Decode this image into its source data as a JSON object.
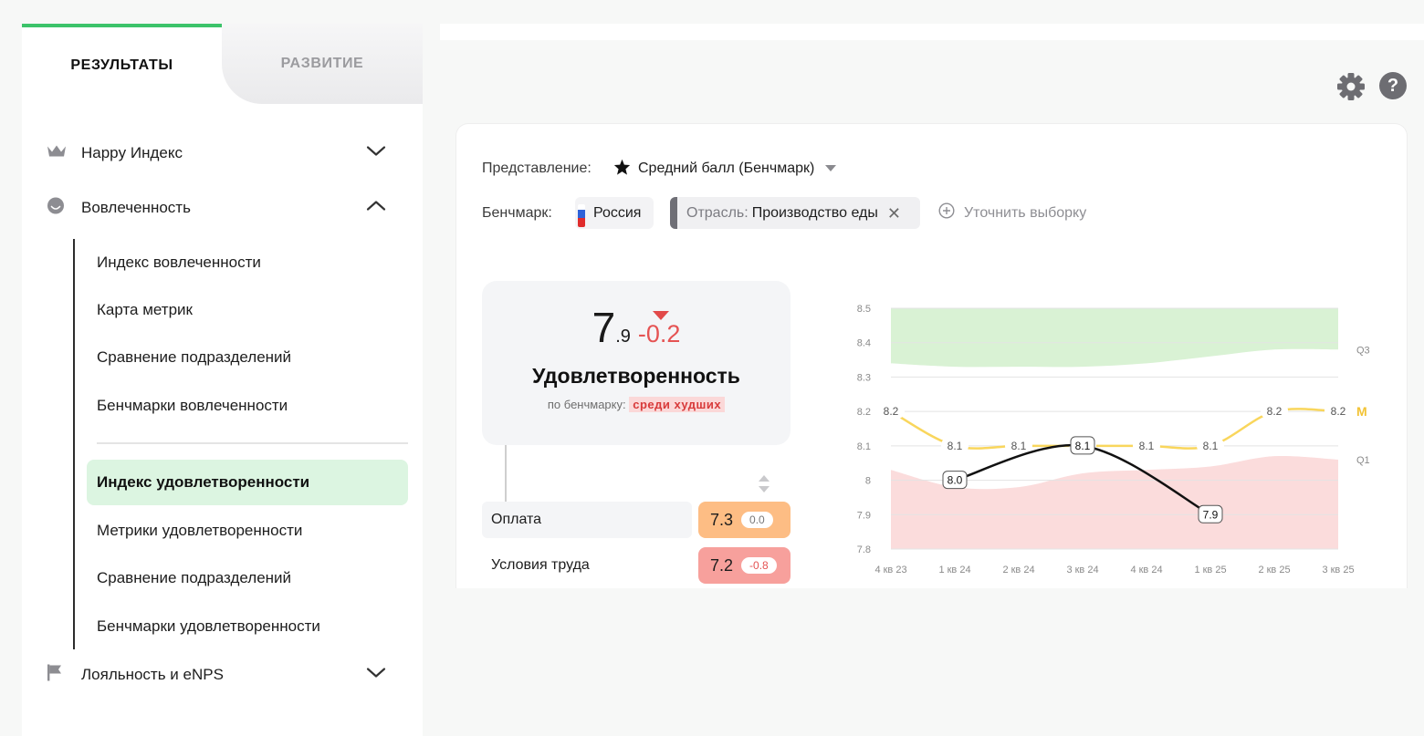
{
  "sidebar": {
    "tabs": {
      "active": "РЕЗУЛЬТАТЫ",
      "inactive": "РАЗВИТИЕ"
    },
    "groups": {
      "happy": "Happy Индекс",
      "engagement": "Вовлеченность",
      "loyalty": "Лояльность и eNPS"
    },
    "engagement_items": [
      "Индекс вовлеченности",
      "Карта метрик",
      "Сравнение подразделений",
      "Бенчмарки вовлеченности"
    ],
    "satisfaction_items": [
      "Индекс удовлетворенности",
      "Метрики удовлетворенности",
      "Сравнение подразделений",
      "Бенчмарки удовлетворенности"
    ]
  },
  "filters": {
    "view_label": "Представление:",
    "view_value": "Средний балл (Бенчмарк)",
    "benchmark_label": "Бенчмарк:",
    "country": "Россия",
    "industry_key": "Отрасль:",
    "industry_value": "Производство еды",
    "refine": "Уточнить выборку"
  },
  "score": {
    "int": "7",
    "dec": ".9",
    "delta": "-0.2",
    "title": "Удовлетворенность",
    "sub_prefix": "по бенчмарку:",
    "sub_tag": "среди худших"
  },
  "metrics": [
    {
      "name": "Оплата",
      "value": "7.3",
      "delta": "0.0",
      "color": "#fdbd84"
    },
    {
      "name": "Условия труда",
      "value": "7.2",
      "delta": "-0.8",
      "color": "#f7a09c"
    }
  ],
  "colors": {
    "accent_green": "#3cc36a",
    "active_bg": "#dcf5e1",
    "negative": "#e55353",
    "median_line": "#f9d65c",
    "q3_band": "#d9f2d4",
    "q1_band": "#fbdcdc"
  },
  "icons": {
    "happy": "crown-icon",
    "engagement": "smile-icon",
    "loyalty": "flag-icon",
    "settings": "gear-icon",
    "help": "help-icon"
  },
  "chart_data": {
    "type": "line",
    "categories": [
      "4 кв 23",
      "1 кв 24",
      "2 кв 24",
      "3 кв 24",
      "4 кв 24",
      "1 кв 25",
      "2 кв 25",
      "3 кв 25"
    ],
    "ylim": [
      7.8,
      8.5
    ],
    "yticks": [
      "8.5",
      "8.4",
      "8.3",
      "8.2",
      "8.1",
      "8",
      "7.9",
      "7.8"
    ],
    "series": [
      {
        "name": "M",
        "values": [
          8.2,
          8.1,
          8.1,
          8.1,
          8.1,
          8.1,
          8.2,
          8.2
        ]
      },
      {
        "name": "",
        "values": [
          null,
          8.0,
          null,
          8.1,
          null,
          7.9,
          null,
          null
        ]
      }
    ],
    "bands": [
      {
        "name": "Q3",
        "values": [
          8.34,
          8.33,
          8.33,
          8.33,
          8.34,
          8.36,
          8.38,
          8.38
        ]
      },
      {
        "name": "Q1",
        "values": [
          8.03,
          7.98,
          7.98,
          8.02,
          8.03,
          8.04,
          8.07,
          8.06
        ]
      }
    ],
    "grid": true
  }
}
